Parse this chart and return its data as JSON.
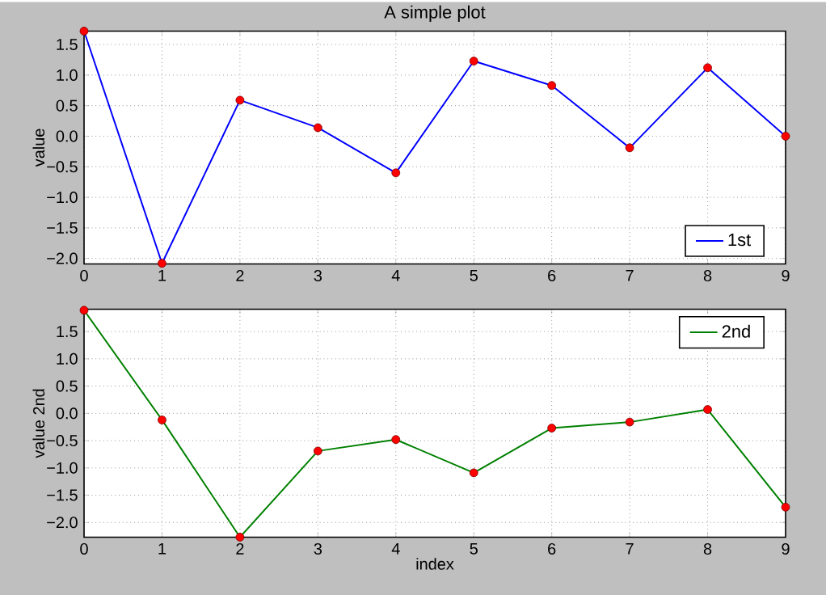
{
  "chart_data": [
    {
      "type": "line",
      "title": "A simple plot",
      "ylabel": "value",
      "x": [
        0,
        1,
        2,
        3,
        4,
        5,
        6,
        7,
        8,
        9
      ],
      "series": [
        {
          "name": "1st",
          "color": "#0000ff",
          "values": [
            1.72,
            -2.08,
            0.59,
            0.14,
            -0.6,
            1.23,
            0.83,
            -0.19,
            1.12,
            0.0
          ]
        }
      ],
      "xlim": [
        0,
        9
      ],
      "xticks": [
        0,
        1,
        2,
        3,
        4,
        5,
        6,
        7,
        8,
        9
      ],
      "ylim": [
        -2.09,
        1.72
      ],
      "yticks": [
        {
          "value": -2,
          "label": "−2.0"
        },
        {
          "value": -1.5,
          "label": "−1.5"
        },
        {
          "value": -1,
          "label": "−1.0"
        },
        {
          "value": -0.5,
          "label": "−0.5"
        },
        {
          "value": 0,
          "label": "0.0"
        },
        {
          "value": 0.5,
          "label": "0.5"
        },
        {
          "value": 1,
          "label": "1.0"
        },
        {
          "value": 1.5,
          "label": "1.5"
        }
      ],
      "grid": true,
      "legend": "bottom right",
      "marker": "circle",
      "line_style": "solid"
    },
    {
      "type": "line",
      "xlabel": "index",
      "ylabel": "value 2nd",
      "x": [
        0,
        1,
        2,
        3,
        4,
        5,
        6,
        7,
        8,
        9
      ],
      "series": [
        {
          "name": "2nd",
          "color": "#008000",
          "values": [
            1.89,
            -0.12,
            -2.27,
            -0.69,
            -0.48,
            -1.09,
            -0.27,
            -0.16,
            0.07,
            -1.72
          ]
        }
      ],
      "xlim": [
        0,
        9
      ],
      "xticks": [
        0,
        1,
        2,
        3,
        4,
        5,
        6,
        7,
        8,
        9
      ],
      "ylim": [
        -2.27,
        1.91
      ],
      "yticks": [
        {
          "value": -2,
          "label": "−2.0"
        },
        {
          "value": -1.5,
          "label": "−1.5"
        },
        {
          "value": -1,
          "label": "−1.0"
        },
        {
          "value": -0.5,
          "label": "−0.5"
        },
        {
          "value": 0,
          "label": "0.0"
        },
        {
          "value": 0.5,
          "label": "0.5"
        },
        {
          "value": 1,
          "label": "1.0"
        },
        {
          "value": 1.5,
          "label": "1.5"
        }
      ],
      "grid": true,
      "legend": "top right",
      "marker": "circle",
      "line_style": "solid"
    }
  ]
}
